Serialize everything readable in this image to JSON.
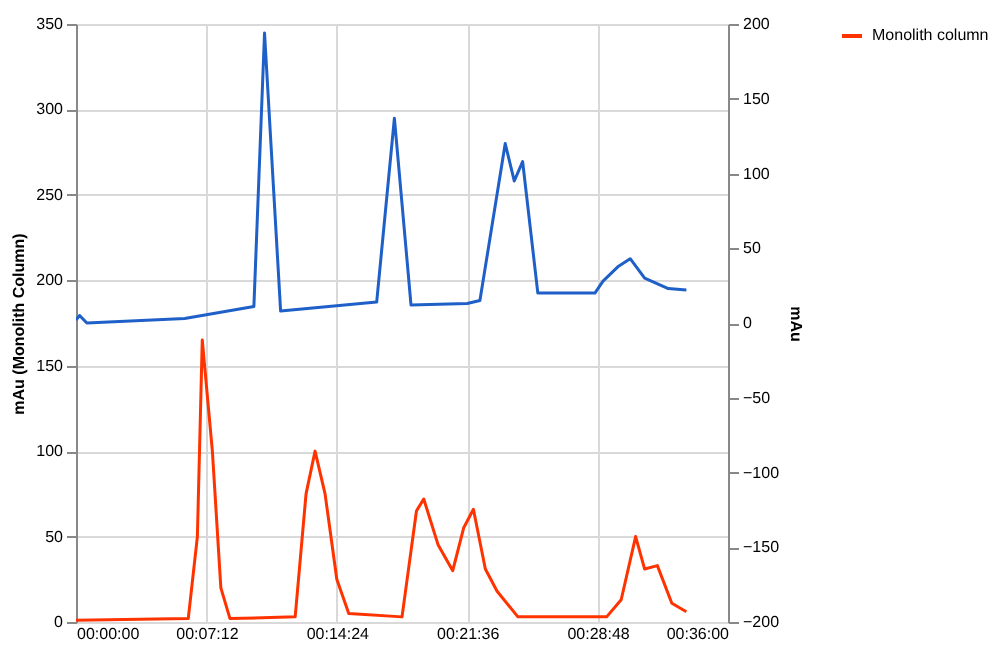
{
  "chart_data": {
    "type": "line",
    "ylabel": "mAu (Monolith Column)",
    "y2label": "mAu",
    "xlim": [
      0,
      0.6
    ],
    "xticks": [
      {
        "value": 0,
        "label": "00:00:00"
      },
      {
        "value": 0.12,
        "label": "00:07:12"
      },
      {
        "value": 0.24,
        "label": "00:14:24"
      },
      {
        "value": 0.36,
        "label": "00:21:36"
      },
      {
        "value": 0.48,
        "label": "00:28:48"
      },
      {
        "value": 0.6,
        "label": "00:36:00"
      }
    ],
    "ylim": [
      0,
      350
    ],
    "yticks": [
      0,
      50,
      100,
      150,
      200,
      250,
      300,
      350
    ],
    "y2lim": [
      -200,
      200
    ],
    "y2ticks": [
      -200,
      -150,
      -100,
      -50,
      0,
      50,
      100,
      150,
      200
    ],
    "grid": true,
    "legend": "right",
    "line_style": "solid",
    "marker": "none",
    "series": [
      {
        "name": "Monolith column",
        "color": "#ff3300",
        "x": [
          0,
          0.1033,
          0.1117,
          0.1162,
          0.1255,
          0.1333,
          0.1417,
          0.2017,
          0.2117,
          0.22,
          0.2292,
          0.24,
          0.251,
          0.3,
          0.3133,
          0.32,
          0.3333,
          0.3467,
          0.3567,
          0.3657,
          0.3767,
          0.3875,
          0.4067,
          0.4883,
          0.5017,
          0.515,
          0.5233,
          0.535,
          0.5483,
          0.5617
        ],
        "values": [
          1,
          2,
          50,
          165,
          100,
          20,
          2,
          3,
          75,
          100,
          75,
          25,
          5,
          3,
          65,
          72,
          45,
          30,
          55,
          66,
          31,
          18,
          3,
          3,
          13,
          50,
          31,
          33,
          11,
          6
        ]
      },
      {
        "color": "#1f5fc8",
        "axis": "y2",
        "x": [
          0,
          0.0033,
          0.01,
          0.1,
          0.1637,
          0.1735,
          0.1883,
          0.2767,
          0.293,
          0.3083,
          0.36,
          0.3717,
          0.395,
          0.4033,
          0.411,
          0.425,
          0.4775,
          0.485,
          0.4993,
          0.51,
          0.5233,
          0.545,
          0.5617
        ],
        "values": [
          2,
          5,
          0,
          3,
          11,
          194,
          8,
          14,
          137,
          12,
          13,
          15,
          120,
          95,
          108,
          20,
          20,
          28,
          38,
          43,
          30,
          23,
          22
        ]
      }
    ]
  }
}
